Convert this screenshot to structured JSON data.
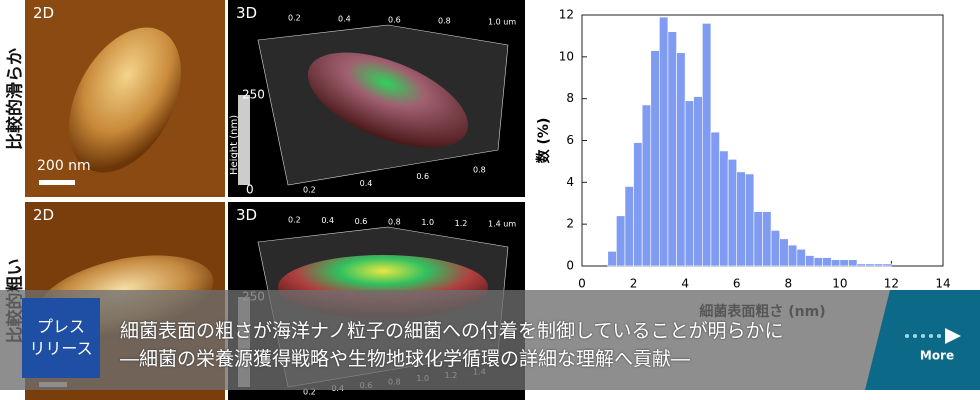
{
  "panels": [
    {
      "side": "比較的滑らか",
      "label2d": "2D",
      "label3d": "3D",
      "scale": "200 nm",
      "cb_max": "250",
      "cb_min": "0",
      "cb_title": "Height (nm)",
      "top_ticks": [
        "0.2",
        "0.4",
        "0.6",
        "0.8",
        "1.0 um"
      ],
      "bottom_ticks": [
        "0.2",
        "0.4",
        "0.6",
        "0.8"
      ]
    },
    {
      "side": "比較的粗い",
      "label2d": "2D",
      "label3d": "3D",
      "cb_max": "250",
      "top_ticks": [
        "0.2",
        "0.4",
        "0.6",
        "0.8",
        "1.0",
        "1.2",
        "1.4 um"
      ],
      "bottom_ticks": [
        "0.2",
        "0.4",
        "0.6",
        "0.8",
        "1.0",
        "1.2",
        "1.4"
      ]
    }
  ],
  "chart_data": {
    "type": "histogram",
    "xlabel": "細菌表面粗さ (nm)",
    "ylabel": "数 (%)",
    "color": "#7f9cf2",
    "bins": [
      1,
      1.333,
      1.667,
      2,
      2.333,
      2.667,
      3,
      3.333,
      3.667,
      4,
      4.333,
      4.667,
      5,
      5.333,
      5.667,
      6,
      6.333,
      6.667,
      7,
      7.333,
      7.667,
      8,
      8.333,
      8.667,
      9,
      9.333,
      9.667,
      10,
      10.333,
      10.667,
      11,
      11.333,
      11.667,
      12
    ],
    "values": [
      0.7,
      2.4,
      3.8,
      5.9,
      7.7,
      10.3,
      11.9,
      11.2,
      10.2,
      7.9,
      8.1,
      11.6,
      6.4,
      5.5,
      5.1,
      4.5,
      4.4,
      2.6,
      2.6,
      1.7,
      1.3,
      1.0,
      0.8,
      0.5,
      0.4,
      0.4,
      0.3,
      0.3,
      0.3,
      0.1,
      0.1,
      0.1,
      0.1
    ],
    "xlim": [
      0,
      14
    ],
    "xticks": [
      0,
      2,
      4,
      6,
      8,
      10,
      12,
      14
    ],
    "ylim": [
      0,
      12
    ],
    "yticks": [
      0,
      2,
      4,
      6,
      8,
      10,
      12
    ]
  },
  "banner": {
    "badge": [
      "プレス",
      "リリース"
    ],
    "headline": [
      "細菌表面の粗さが海洋ナノ粒子の細菌への付着を制御していることが明らかに",
      "―細菌の栄養源獲得戦略や生物地球化学循環の詳細な理解へ貢献―"
    ],
    "more": "More"
  }
}
